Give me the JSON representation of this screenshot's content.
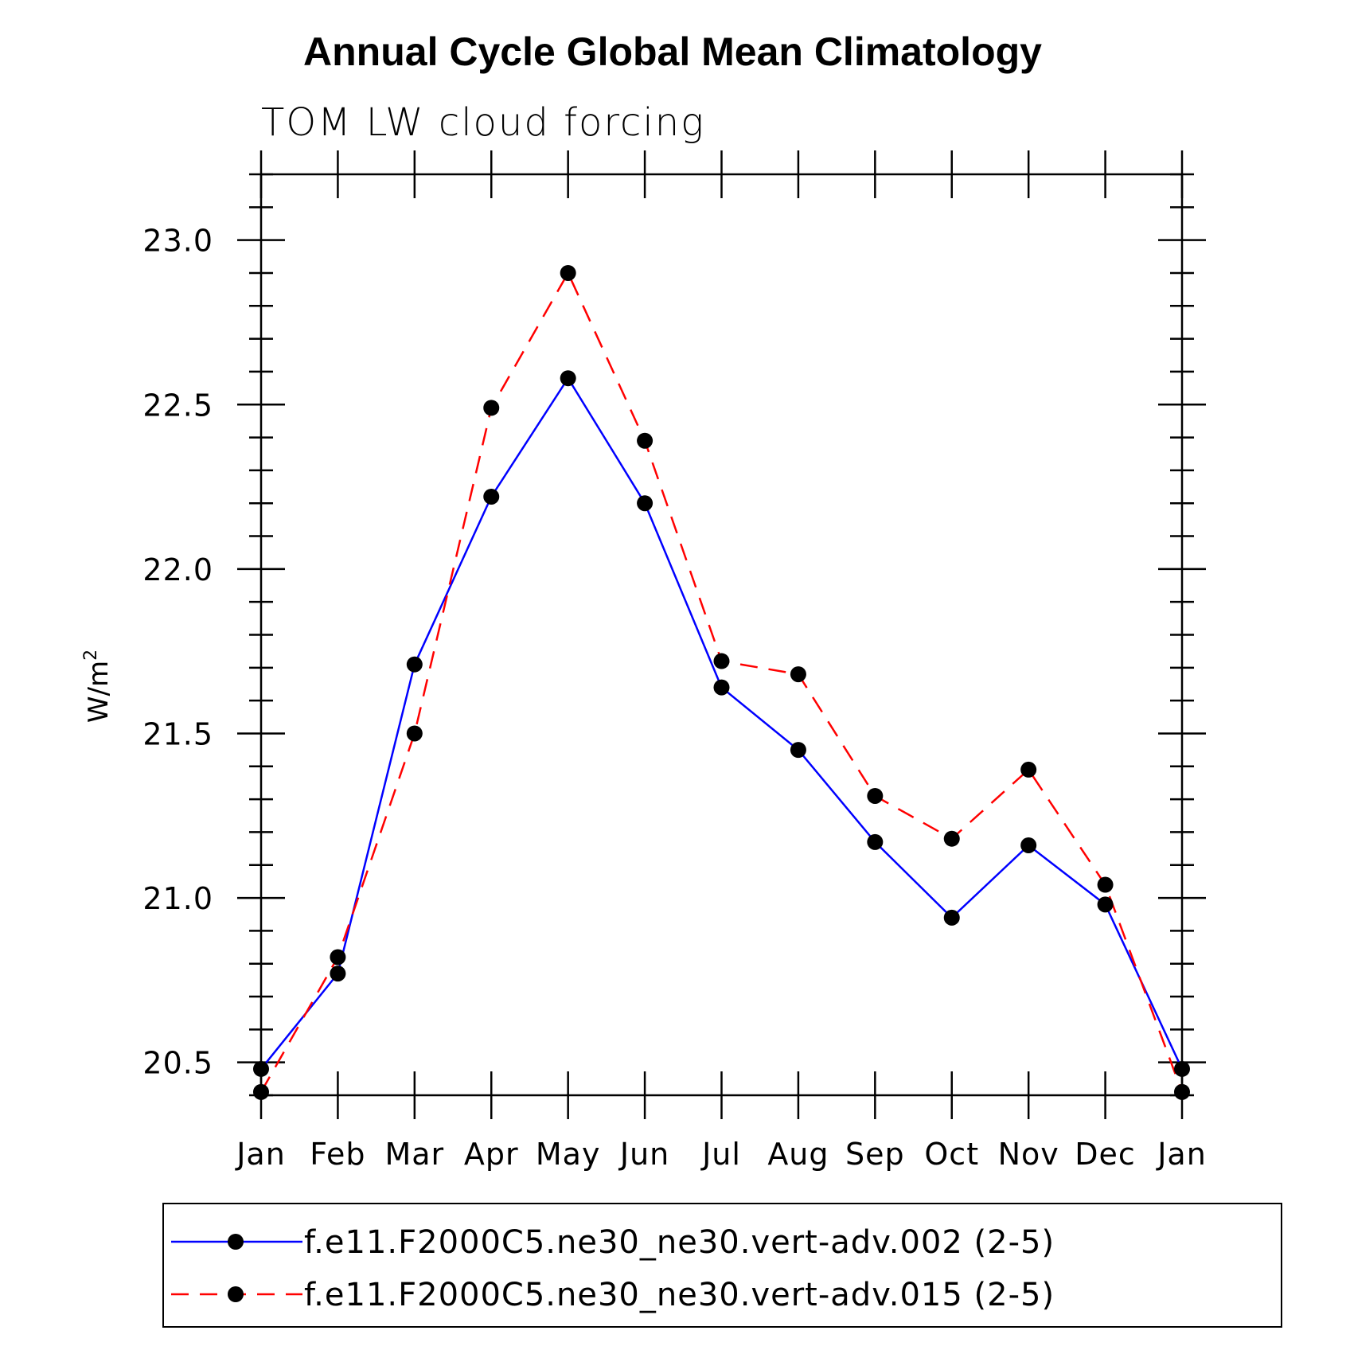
{
  "chart_data": {
    "type": "line",
    "title": "Annual Cycle Global Mean Climatology",
    "subtitle": "TOM LW cloud forcing",
    "ylabel": "W/m",
    "ylabel_superscript": "2",
    "xlabel": "",
    "categories": [
      "Jan",
      "Feb",
      "Mar",
      "Apr",
      "May",
      "Jun",
      "Jul",
      "Aug",
      "Sep",
      "Oct",
      "Nov",
      "Dec",
      "Jan"
    ],
    "ylim": [
      20.4,
      23.2
    ],
    "yticks": [
      20.5,
      21.0,
      21.5,
      22.0,
      22.5,
      23.0
    ],
    "ytick_labels": [
      "20.5",
      "21.0",
      "21.5",
      "22.0",
      "22.5",
      "23.0"
    ],
    "minor_tick_step": 0.1,
    "series": [
      {
        "name": "f.e11.F2000C5.ne30_ne30.vert-adv.002 (2-5)",
        "color": "#0000ff",
        "dash": "solid",
        "values": [
          20.48,
          20.77,
          21.71,
          22.22,
          22.58,
          22.2,
          21.64,
          21.45,
          21.17,
          20.94,
          21.16,
          20.98,
          20.48
        ]
      },
      {
        "name": "f.e11.F2000C5.ne30_ne30.vert-adv.015 (2-5)",
        "color": "#ff0000",
        "dash": "dashed",
        "values": [
          20.41,
          20.82,
          21.5,
          22.49,
          22.9,
          22.39,
          21.72,
          21.68,
          21.31,
          21.18,
          21.39,
          21.04,
          20.41
        ]
      }
    ],
    "marker_color": "#000000",
    "legend_position": "bottom"
  }
}
